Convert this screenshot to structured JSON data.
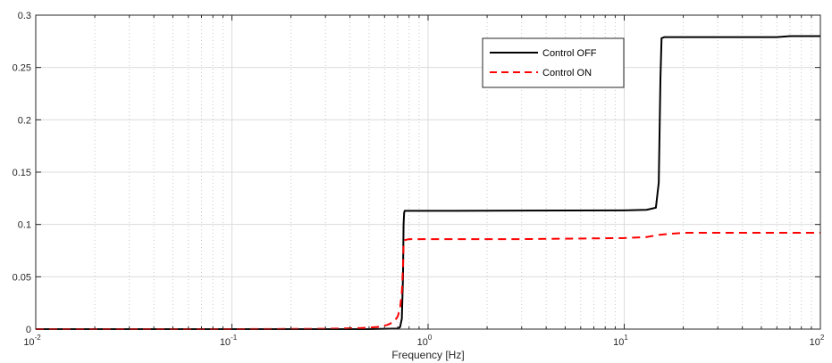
{
  "chart_data": {
    "type": "line",
    "title": "",
    "xlabel": "Frequency [Hz]",
    "ylabel": "",
    "xscale": "log",
    "xlim": [
      0.01,
      100
    ],
    "ylim": [
      0,
      0.3
    ],
    "grid": true,
    "legend_position": "top-right",
    "x_ticks": [
      {
        "value": 0.01,
        "base": "10",
        "exp": "-2"
      },
      {
        "value": 0.1,
        "base": "10",
        "exp": "-1"
      },
      {
        "value": 1,
        "base": "10",
        "exp": "0"
      },
      {
        "value": 10,
        "base": "10",
        "exp": "1"
      },
      {
        "value": 100,
        "base": "10",
        "exp": "2"
      }
    ],
    "y_ticks": [
      {
        "value": 0,
        "label": "0"
      },
      {
        "value": 0.05,
        "label": "0.05"
      },
      {
        "value": 0.1,
        "label": "0.1"
      },
      {
        "value": 0.15,
        "label": "0.15"
      },
      {
        "value": 0.2,
        "label": "0.2"
      },
      {
        "value": 0.25,
        "label": "0.25"
      },
      {
        "value": 0.3,
        "label": "0.3"
      }
    ],
    "series": [
      {
        "name": "Control OFF",
        "color": "#000000",
        "style": "solid",
        "x": [
          0.01,
          0.1,
          0.5,
          0.7,
          0.72,
          0.735,
          0.745,
          0.75,
          0.755,
          0.76,
          0.77,
          1,
          3,
          10,
          13,
          14.5,
          15,
          15.3,
          15.5,
          16,
          20,
          60,
          70,
          100
        ],
        "y": [
          0,
          0,
          0,
          0.0005,
          0.002,
          0.01,
          0.05,
          0.1,
          0.111,
          0.113,
          0.113,
          0.113,
          0.1132,
          0.1135,
          0.114,
          0.116,
          0.14,
          0.24,
          0.278,
          0.279,
          0.279,
          0.279,
          0.28,
          0.28
        ]
      },
      {
        "name": "Control ON",
        "color": "#ff0000",
        "style": "dashed",
        "x": [
          0.01,
          0.1,
          0.3,
          0.45,
          0.55,
          0.62,
          0.67,
          0.7,
          0.72,
          0.735,
          0.745,
          0.75,
          0.76,
          0.8,
          1,
          3,
          10,
          13,
          15,
          17,
          20,
          50,
          100
        ],
        "y": [
          0,
          0,
          0.0003,
          0.001,
          0.002,
          0.004,
          0.007,
          0.012,
          0.02,
          0.035,
          0.06,
          0.08,
          0.085,
          0.086,
          0.086,
          0.086,
          0.087,
          0.088,
          0.09,
          0.091,
          0.092,
          0.092,
          0.092
        ]
      }
    ]
  }
}
